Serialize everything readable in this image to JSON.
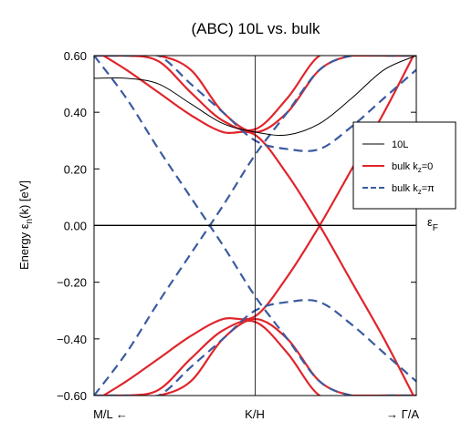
{
  "chart_data": {
    "type": "line",
    "title": "(ABC) 10L vs. bulk",
    "ylabel": "Energy εn(k) [eV]",
    "ylabel_parts": {
      "base": "Energy ε",
      "sub": "n",
      "rest": "(k) [eV]"
    },
    "ylim": [
      -0.6,
      0.6
    ],
    "yticks": [
      0.6,
      0.4,
      0.2,
      0.0,
      -0.2,
      -0.4,
      -0.6
    ],
    "ytick_labels": [
      "0.60",
      "0.40",
      "0.20",
      "0.00",
      "−0.20",
      "−0.40",
      "−0.60"
    ],
    "xlim": [
      -1,
      1
    ],
    "xtick_labels": {
      "left": "M/L ←",
      "center": "K/H",
      "right": "→ Γ/A"
    },
    "fermi_label": {
      "base": "ε",
      "sub": "F"
    },
    "fermi_level": 0.0,
    "grid": false,
    "legend_position": "right",
    "colors": {
      "10L": "#000000",
      "bulk_kz0": "#e0252b",
      "bulk_kzpi": "#3b5ba0"
    },
    "legend": [
      {
        "key": "10L",
        "label": "10L",
        "label_sub": "",
        "label_tail": "",
        "style": "solid",
        "color": "#000000"
      },
      {
        "key": "bulk_kz0",
        "label": "bulk k",
        "label_sub": "z",
        "label_tail": "=0",
        "style": "solid",
        "color": "#e0252b"
      },
      {
        "key": "bulk_kzpi",
        "label": "bulk k",
        "label_sub": "z",
        "label_tail": "=π",
        "style": "dashed",
        "color": "#3b5ba0"
      }
    ],
    "series": [
      {
        "name": "bulk k₂=0",
        "key": "bulk_kz0",
        "x": [
          -1.0,
          -0.8,
          -0.6,
          -0.4,
          -0.2,
          0.0,
          0.2,
          0.4,
          0.6,
          0.8,
          1.0
        ],
        "bands": {
          "cond_steep_right": [
            0.62,
            0.55,
            0.47,
            0.39,
            0.33,
            0.32,
            0.18,
            0.0,
            -0.2,
            -0.4,
            -0.62
          ],
          "val_steep_right": [
            -0.62,
            -0.55,
            -0.47,
            -0.39,
            -0.33,
            -0.32,
            -0.18,
            0.0,
            0.2,
            0.4,
            0.62
          ],
          "cond_left_upper": [
            0.6,
            0.6,
            0.58,
            0.47,
            0.37,
            0.34,
            0.45,
            0.6,
            0.6,
            0.6,
            0.6
          ],
          "cond_left_lower": [
            0.6,
            0.6,
            0.6,
            0.55,
            0.4,
            0.33,
            0.4,
            0.55,
            0.6,
            0.6,
            0.6
          ],
          "val_left_upper": [
            -0.6,
            -0.6,
            -0.58,
            -0.47,
            -0.37,
            -0.34,
            -0.45,
            -0.6,
            -0.6,
            -0.6,
            -0.6
          ],
          "val_left_lower": [
            -0.6,
            -0.6,
            -0.6,
            -0.55,
            -0.4,
            -0.33,
            -0.4,
            -0.55,
            -0.6,
            -0.6,
            -0.6
          ]
        }
      },
      {
        "name": "bulk k₂=π",
        "key": "bulk_kzpi",
        "x": [
          -1.0,
          -0.8,
          -0.6,
          -0.4,
          -0.2,
          0.0,
          0.2,
          0.4,
          0.6,
          0.8,
          1.0
        ],
        "bands": {
          "cond_linear": [
            0.6,
            0.6,
            0.6,
            0.5,
            0.4,
            0.3,
            0.27,
            0.27,
            0.35,
            0.45,
            0.55
          ],
          "val_linear": [
            -0.6,
            -0.6,
            -0.6,
            -0.5,
            -0.4,
            -0.3,
            -0.27,
            -0.27,
            -0.35,
            -0.45,
            -0.55
          ],
          "cross_down": [
            0.6,
            0.45,
            0.27,
            0.1,
            -0.07,
            -0.25,
            -0.4,
            -0.55,
            -0.6,
            -0.6,
            -0.6
          ],
          "cross_up": [
            -0.6,
            -0.45,
            -0.27,
            -0.1,
            0.07,
            0.25,
            0.4,
            0.55,
            0.6,
            0.6,
            0.6
          ]
        }
      },
      {
        "name": "10L",
        "key": "10L",
        "x": [
          -1.0,
          -0.8,
          -0.6,
          -0.4,
          -0.2,
          0.0,
          0.2,
          0.4,
          0.6,
          0.8,
          1.0
        ],
        "bands": {
          "surface_upper": [
            0.0,
            0.0,
            0.0,
            0.0,
            0.0,
            0.0,
            0.0,
            0.0,
            0.0,
            0.0,
            0.0
          ],
          "cond_1": [
            0.52,
            0.52,
            0.5,
            0.43,
            0.36,
            0.33,
            0.32,
            0.36,
            0.45,
            0.55,
            0.6
          ]
        }
      }
    ]
  }
}
